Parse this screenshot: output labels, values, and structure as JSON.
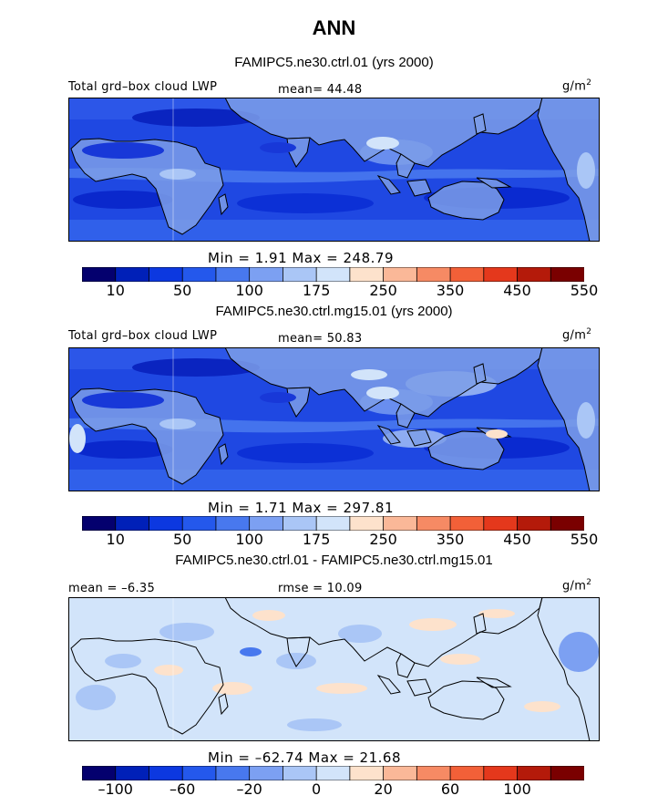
{
  "title": "ANN",
  "colors": {
    "scale": [
      "#04006e",
      "#0020b8",
      "#0c38e0",
      "#2458ec",
      "#4878ee",
      "#7ca0f2",
      "#aac6f6",
      "#d2e4fa",
      "#fde2cc",
      "#fab898",
      "#f68a64",
      "#f26038",
      "#e4381c",
      "#b41a0a",
      "#7a0000"
    ],
    "continent": "#7d9ee8",
    "ocean": "#2f5fe6"
  },
  "panels": [
    {
      "id": "p1",
      "case_title": "FAMIPC5.ne30.ctrl.01 (yrs 2000)",
      "left_label": "Total grd–box cloud LWP",
      "center_label": "mean=  44.48",
      "units": "g/m",
      "units_sup": "2",
      "minmax": "Min =    1.91  Max  =  248.79",
      "ticks": [
        "10",
        "50",
        "100",
        "175",
        "250",
        "350",
        "450",
        "550"
      ],
      "field": "abs1"
    },
    {
      "id": "p2",
      "case_title": "FAMIPC5.ne30.ctrl.mg15.01 (yrs 2000)",
      "left_label": "Total grd–box cloud LWP",
      "center_label": "mean=  50.83",
      "units": "g/m",
      "units_sup": "2",
      "minmax": "Min =    1.71  Max  =  297.81",
      "ticks": [
        "10",
        "50",
        "100",
        "175",
        "250",
        "350",
        "450",
        "550"
      ],
      "field": "abs2"
    },
    {
      "id": "p3",
      "case_title": "FAMIPC5.ne30.ctrl.01 - FAMIPC5.ne30.ctrl.mg15.01",
      "left_label": "mean =  –6.35",
      "center_label": "rmse =   10.09",
      "units": "g/m",
      "units_sup": "2",
      "minmax": "Min =  –62.74  Max  =   21.68",
      "ticks": [
        "–100",
        "–60",
        "–20",
        "0",
        "20",
        "60",
        "100"
      ],
      "field": "diff"
    }
  ],
  "chart_data": [
    {
      "type": "heatmap",
      "title": "FAMIPC5.ne30.ctrl.01 (yrs 2000)",
      "variable": "Total grd–box cloud LWP",
      "units": "g/m2",
      "mean": 44.48,
      "min": 1.91,
      "max": 248.79,
      "colorbar_levels": [
        10,
        25,
        50,
        75,
        100,
        125,
        175,
        200,
        250,
        300,
        350,
        400,
        450,
        500,
        550
      ],
      "colorbar_tick_labels": [
        "10",
        "50",
        "100",
        "175",
        "250",
        "350",
        "450",
        "550"
      ]
    },
    {
      "type": "heatmap",
      "title": "FAMIPC5.ne30.ctrl.mg15.01 (yrs 2000)",
      "variable": "Total grd–box cloud LWP",
      "units": "g/m2",
      "mean": 50.83,
      "min": 1.71,
      "max": 297.81,
      "colorbar_levels": [
        10,
        25,
        50,
        75,
        100,
        125,
        175,
        200,
        250,
        300,
        350,
        400,
        450,
        500,
        550
      ],
      "colorbar_tick_labels": [
        "10",
        "50",
        "100",
        "175",
        "250",
        "350",
        "450",
        "550"
      ]
    },
    {
      "type": "heatmap",
      "title": "FAMIPC5.ne30.ctrl.01 - FAMIPC5.ne30.ctrl.mg15.01",
      "units": "g/m2",
      "mean": -6.35,
      "rmse": 10.09,
      "min": -62.74,
      "max": 21.68,
      "colorbar_levels": [
        -120,
        -100,
        -80,
        -60,
        -40,
        -20,
        -10,
        0,
        10,
        20,
        40,
        60,
        80,
        100,
        120
      ],
      "colorbar_tick_labels": [
        "–100",
        "–60",
        "–20",
        "0",
        "20",
        "60",
        "100"
      ]
    }
  ]
}
